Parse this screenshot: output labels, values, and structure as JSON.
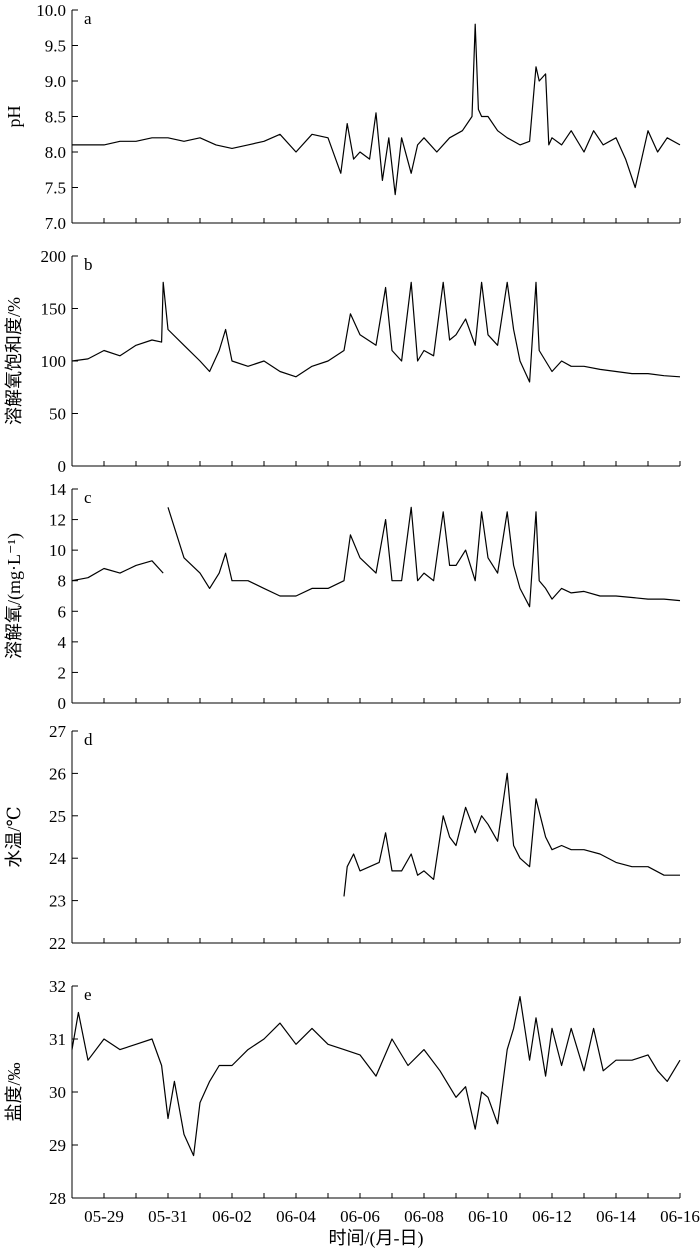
{
  "figure": {
    "xlabel": "时间/(月-日)",
    "x_ticks": [
      "05-29",
      "05-31",
      "06-02",
      "06-04",
      "06-06",
      "06-08",
      "06-10",
      "06-12",
      "06-14",
      "06-16"
    ]
  },
  "chart_data": [
    {
      "type": "line",
      "panel": "a",
      "ylabel": "pH",
      "ylim": [
        7.0,
        10.0
      ],
      "yticks": [
        "7.0",
        "7.5",
        "8.0",
        "8.5",
        "9.0",
        "9.5",
        "10.0"
      ],
      "xlim": [
        "05-28",
        "06-16"
      ],
      "series": [
        {
          "x": [
            "05-28",
            "05-28.5",
            "05-29",
            "05-29.5",
            "05-30",
            "05-30.5",
            "05-31",
            "05-31.5",
            "06-01",
            "06-01.5",
            "06-02",
            "06-02.5",
            "06-03",
            "06-03.5",
            "06-04",
            "06-04.5",
            "06-05",
            "06-05.4",
            "06-05.6",
            "06-05.8",
            "06-06",
            "06-06.3",
            "06-06.5",
            "06-06.7",
            "06-06.9",
            "06-07.1",
            "06-07.3",
            "06-07.6",
            "06-07.8",
            "06-08",
            "06-08.4",
            "06-08.8",
            "06-09.2",
            "06-09.5",
            "06-09.6",
            "06-09.7",
            "06-09.8",
            "06-10",
            "06-10.3",
            "06-10.6",
            "06-11",
            "06-11.3",
            "06-11.5",
            "06-11.6",
            "06-11.8",
            "06-11.9",
            "06-12",
            "06-12.3",
            "06-12.6",
            "06-13",
            "06-13.3",
            "06-13.6",
            "06-14",
            "06-14.3",
            "06-14.6",
            "06-15",
            "06-15.3",
            "06-15.6",
            "06-16"
          ],
          "values": [
            8.1,
            8.1,
            8.1,
            8.15,
            8.15,
            8.2,
            8.2,
            8.15,
            8.2,
            8.1,
            8.05,
            8.1,
            8.15,
            8.25,
            8.0,
            8.25,
            8.2,
            7.7,
            8.4,
            7.9,
            8.0,
            7.9,
            8.55,
            7.6,
            8.2,
            7.4,
            8.2,
            7.7,
            8.1,
            8.2,
            8.0,
            8.2,
            8.3,
            8.5,
            9.8,
            8.6,
            8.5,
            8.5,
            8.3,
            8.2,
            8.1,
            8.15,
            9.2,
            9.0,
            9.1,
            8.1,
            8.2,
            8.1,
            8.3,
            8.0,
            8.3,
            8.1,
            8.2,
            7.9,
            7.5,
            8.3,
            8.0,
            8.2,
            8.1
          ]
        }
      ]
    },
    {
      "type": "line",
      "panel": "b",
      "ylabel": "溶解氧饱和度/%",
      "ylim": [
        0,
        200
      ],
      "yticks": [
        "0",
        "50",
        "100",
        "150",
        "200"
      ],
      "xlim": [
        "05-28",
        "06-16"
      ],
      "series": [
        {
          "x": [
            "05-28",
            "05-28.5",
            "05-29",
            "05-29.5",
            "05-30",
            "05-30.5",
            "05-30.8",
            "05-30.85",
            "05-31",
            "05-31.5",
            "06-01",
            "06-01.3",
            "06-01.6",
            "06-01.8",
            "06-02",
            "06-02.5",
            "06-03",
            "06-03.5",
            "06-04",
            "06-04.5",
            "06-05",
            "06-05.5",
            "06-05.7",
            "06-06",
            "06-06.5",
            "06-06.8",
            "06-07",
            "06-07.3",
            "06-07.6",
            "06-07.8",
            "06-08",
            "06-08.3",
            "06-08.6",
            "06-08.8",
            "06-09",
            "06-09.3",
            "06-09.6",
            "06-09.8",
            "06-10",
            "06-10.3",
            "06-10.6",
            "06-10.8",
            "06-11",
            "06-11.3",
            "06-11.5",
            "06-11.6",
            "06-11.8",
            "06-12",
            "06-12.3",
            "06-12.6",
            "06-13",
            "06-13.5",
            "06-14",
            "06-14.5",
            "06-15",
            "06-15.5",
            "06-16"
          ],
          "values": [
            100,
            102,
            110,
            105,
            115,
            120,
            118,
            175,
            130,
            115,
            100,
            90,
            110,
            130,
            100,
            95,
            100,
            90,
            85,
            95,
            100,
            110,
            145,
            125,
            115,
            170,
            110,
            100,
            175,
            100,
            110,
            105,
            175,
            120,
            125,
            140,
            115,
            175,
            125,
            115,
            175,
            130,
            100,
            80,
            175,
            110,
            100,
            90,
            100,
            95,
            95,
            92,
            90,
            88,
            88,
            86,
            85
          ]
        }
      ]
    },
    {
      "type": "line",
      "panel": "c",
      "ylabel": "溶解氧/(mg·L⁻¹)",
      "ylim": [
        0,
        14
      ],
      "yticks": [
        "0",
        "2",
        "4",
        "6",
        "8",
        "10",
        "12",
        "14"
      ],
      "xlim": [
        "05-28",
        "06-16"
      ],
      "series": [
        {
          "x": [
            "05-28",
            "05-28.5",
            "05-29",
            "05-29.5",
            "05-30",
            "05-30.5",
            "05-30.85",
            "05-30.9",
            "05-31",
            "05-31.5",
            "06-01",
            "06-01.3",
            "06-01.6",
            "06-01.8",
            "06-02",
            "06-02.5",
            "06-03",
            "06-03.5",
            "06-04",
            "06-04.5",
            "06-05",
            "06-05.5",
            "06-05.7",
            "06-06",
            "06-06.5",
            "06-06.8",
            "06-07",
            "06-07.3",
            "06-07.6",
            "06-07.8",
            "06-08",
            "06-08.3",
            "06-08.6",
            "06-08.8",
            "06-09",
            "06-09.3",
            "06-09.6",
            "06-09.8",
            "06-10",
            "06-10.3",
            "06-10.6",
            "06-10.8",
            "06-11",
            "06-11.3",
            "06-11.5",
            "06-11.6",
            "06-11.8",
            "06-12",
            "06-12.3",
            "06-12.6",
            "06-13",
            "06-13.5",
            "06-14",
            "06-14.5",
            "06-15",
            "06-15.5",
            "06-16"
          ],
          "values": [
            8.0,
            8.2,
            8.8,
            8.5,
            9.0,
            9.3,
            8.5,
            null,
            12.8,
            9.5,
            8.5,
            7.5,
            8.5,
            9.8,
            8.0,
            8.0,
            7.5,
            7.0,
            7.0,
            7.5,
            7.5,
            8.0,
            11.0,
            9.5,
            8.5,
            12.0,
            8.0,
            8.0,
            12.8,
            8.0,
            8.5,
            8.0,
            12.5,
            9.0,
            9.0,
            10.0,
            8.0,
            12.5,
            9.5,
            8.5,
            12.5,
            9.0,
            7.5,
            6.3,
            12.5,
            8.0,
            7.5,
            6.8,
            7.5,
            7.2,
            7.3,
            7.0,
            7.0,
            6.9,
            6.8,
            6.8,
            6.7
          ]
        }
      ]
    },
    {
      "type": "line",
      "panel": "d",
      "ylabel": "水温/℃",
      "ylim": [
        22,
        27
      ],
      "yticks": [
        "22",
        "23",
        "24",
        "25",
        "26",
        "27"
      ],
      "xlim": [
        "05-28",
        "06-16"
      ],
      "series": [
        {
          "x": [
            "06-05.5",
            "06-05.6",
            "06-05.8",
            "06-06",
            "06-06.3",
            "06-06.6",
            "06-06.8",
            "06-07",
            "06-07.3",
            "06-07.6",
            "06-07.8",
            "06-08",
            "06-08.3",
            "06-08.6",
            "06-08.8",
            "06-09",
            "06-09.3",
            "06-09.6",
            "06-09.8",
            "06-10",
            "06-10.3",
            "06-10.6",
            "06-10.8",
            "06-11",
            "06-11.3",
            "06-11.5",
            "06-11.7",
            "06-11.8",
            "06-12",
            "06-12.3",
            "06-12.6",
            "06-13",
            "06-13.5",
            "06-14",
            "06-14.5",
            "06-15",
            "06-15.5",
            "06-16"
          ],
          "values": [
            23.1,
            23.8,
            24.1,
            23.7,
            23.8,
            23.9,
            24.6,
            23.7,
            23.7,
            24.1,
            23.6,
            23.7,
            23.5,
            25.0,
            24.5,
            24.3,
            25.2,
            24.6,
            25.0,
            24.8,
            24.4,
            26.0,
            24.3,
            24.0,
            23.8,
            25.4,
            24.8,
            24.5,
            24.2,
            24.3,
            24.2,
            24.2,
            24.1,
            23.9,
            23.8,
            23.8,
            23.6,
            23.6
          ]
        }
      ]
    },
    {
      "type": "line",
      "panel": "e",
      "ylabel": "盐度/‰",
      "ylim": [
        28,
        32
      ],
      "yticks": [
        "28",
        "29",
        "30",
        "31",
        "32"
      ],
      "xlim": [
        "05-28",
        "06-16"
      ],
      "series": [
        {
          "x": [
            "05-28",
            "05-28.2",
            "05-28.5",
            "05-29",
            "05-29.5",
            "05-30",
            "05-30.5",
            "05-30.8",
            "05-31",
            "05-31.2",
            "05-31.5",
            "05-31.8",
            "06-01",
            "06-01.3",
            "06-01.6",
            "06-02",
            "06-02.5",
            "06-03",
            "06-03.5",
            "06-04",
            "06-04.5",
            "06-05",
            "06-05.5",
            "06-06",
            "06-06.5",
            "06-07",
            "06-07.5",
            "06-08",
            "06-08.5",
            "06-09",
            "06-09.3",
            "06-09.6",
            "06-09.8",
            "06-10",
            "06-10.3",
            "06-10.6",
            "06-10.8",
            "06-11",
            "06-11.3",
            "06-11.5",
            "06-11.8",
            "06-12",
            "06-12.3",
            "06-12.6",
            "06-13",
            "06-13.3",
            "06-13.6",
            "06-14",
            "06-14.5",
            "06-15",
            "06-15.3",
            "06-15.6",
            "06-16"
          ],
          "values": [
            30.8,
            31.5,
            30.6,
            31.0,
            30.8,
            30.9,
            31.0,
            30.5,
            29.5,
            30.2,
            29.2,
            28.8,
            29.8,
            30.2,
            30.5,
            30.5,
            30.8,
            31.0,
            31.3,
            30.9,
            31.2,
            30.9,
            30.8,
            30.7,
            30.3,
            31.0,
            30.5,
            30.8,
            30.4,
            29.9,
            30.1,
            29.3,
            30.0,
            29.9,
            29.4,
            30.8,
            31.2,
            31.8,
            30.6,
            31.4,
            30.3,
            31.2,
            30.5,
            31.2,
            30.4,
            31.2,
            30.4,
            30.6,
            30.6,
            30.7,
            30.4,
            30.2,
            30.6
          ]
        }
      ]
    }
  ]
}
